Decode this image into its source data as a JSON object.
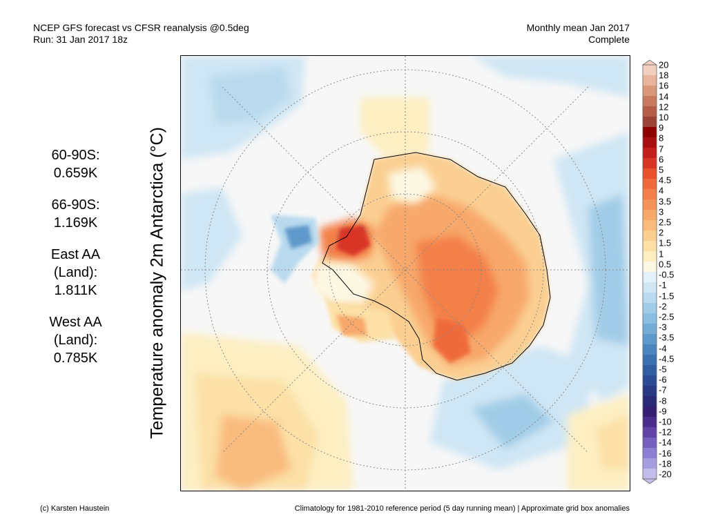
{
  "header": {
    "title": "NCEP GFS forecast vs CFSR reanalysis @0.5deg",
    "run": "Run: 31 Jan 2017 18z",
    "period": "Monthly mean Jan 2017",
    "status": "Complete"
  },
  "stats": [
    {
      "label_lines": [
        "60-90S:"
      ],
      "value": "0.659K"
    },
    {
      "label_lines": [
        "66-90S:"
      ],
      "value": "1.169K"
    },
    {
      "label_lines": [
        "East AA",
        "(Land):"
      ],
      "value": "1.811K"
    },
    {
      "label_lines": [
        "West AA",
        "(Land):"
      ],
      "value": "0.785K"
    }
  ],
  "chart_data": {
    "type": "heatmap",
    "title": "Temperature anomaly 2m Antarctica (°C)",
    "projection": "south polar stereographic",
    "colorbar_levels": [
      "20",
      "18",
      "16",
      "14",
      "12",
      "10",
      "9",
      "8",
      "7",
      "6",
      "5",
      "4.5",
      "4",
      "3.5",
      "3",
      "2.5",
      "2",
      "1.5",
      "1",
      "0.5",
      "-0.5",
      "-1",
      "-1.5",
      "-2",
      "-2.5",
      "-3",
      "-3.5",
      "-4",
      "-4.5",
      "-5",
      "-6",
      "-7",
      "-8",
      "-9",
      "-10",
      "-12",
      "-14",
      "-16",
      "-18",
      "-20"
    ],
    "colorbar_colors": [
      "#f2d0c0",
      "#e8b49c",
      "#d9977c",
      "#c87a60",
      "#b45d48",
      "#9c4336",
      "#8b0000",
      "#a80f10",
      "#c21e1b",
      "#d83526",
      "#e8502e",
      "#ef6a3b",
      "#f3804a",
      "#f5945a",
      "#f7a86b",
      "#f9bc7e",
      "#fbcf92",
      "#fce0a6",
      "#fdefc2",
      "#fdf8e4",
      "#e4f1f9",
      "#cfe6f4",
      "#b9daee",
      "#a1cce7",
      "#8abde0",
      "#74acd6",
      "#5e99cb",
      "#4b85be",
      "#3c71b0",
      "#325ea1",
      "#2c4b92",
      "#2a3a83",
      "#2b2a74",
      "#352071",
      "#4a2e8c",
      "#5f44a6",
      "#7660be",
      "#8d7fd1",
      "#a69ede",
      "#c2bdea"
    ],
    "regional_anomalies": [
      {
        "region": "60-90S",
        "value": 0.659,
        "unit": "K"
      },
      {
        "region": "66-90S",
        "value": 1.169,
        "unit": "K"
      },
      {
        "region": "East AA (Land)",
        "value": 1.811,
        "unit": "K"
      },
      {
        "region": "West AA (Land)",
        "value": 0.785,
        "unit": "K"
      }
    ]
  },
  "footer": {
    "credit": "(c) Karsten Haustein",
    "note": "Climatology for 1981-2010 reference period (5 day running mean) | Approximate grid box anomalies"
  }
}
